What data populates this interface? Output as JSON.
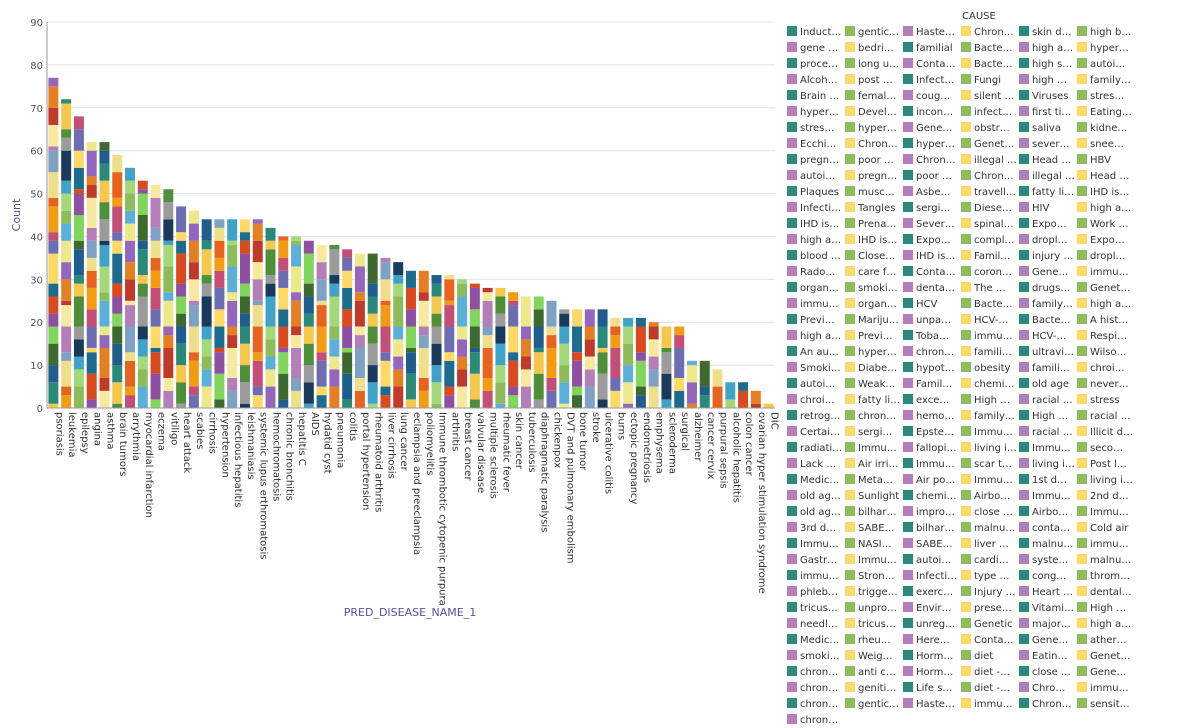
{
  "chart_data": {
    "type": "bar",
    "stacked": true,
    "xlabel": "PRED_DISEASE_NAME_1",
    "ylabel": "Count",
    "ylim": [
      0,
      90
    ],
    "yticks": [
      0,
      10,
      20,
      30,
      40,
      50,
      60,
      70,
      80,
      90
    ],
    "grid": true,
    "legend_title": "CAUSE",
    "legend_position": "right",
    "categories": [
      "psoriasis",
      "leukemia",
      "epilepsy",
      "angina",
      "asthma",
      "brain tumors",
      "arrythmia",
      "myocardial infarction",
      "eczema",
      "vitiligo",
      "heart attack",
      "scabies",
      "cirrhosis",
      "hypertension",
      "infectious hepatitis",
      "leishmaniasis",
      "systemic lupus erthromatosis",
      "hemochromatosis",
      "chronic bronchitis",
      "hepatitis C",
      "AIDS",
      "hydatid cyst",
      "pneumonia",
      "colitis",
      "portal hypertension",
      "rheumatoid arthritis",
      "liver cirrhosis",
      "lung cancer",
      "eclampsia and preeclampsia",
      "poliomyelitis",
      "Immune thrombotic cytopenic purpura",
      "arthritis",
      "breast cancer",
      "valvular disease",
      "multiple sclerosis",
      "rheumatic fever",
      "skin cancer",
      "tuberculosis",
      "diaphragmatic paralysis",
      "chickenpox",
      "DVT and pulmonary embolism",
      "bone tumor",
      "stroke",
      "ulcerative colitis",
      "burns",
      "ectopic pregnancy",
      "endometriosis",
      "emphysema",
      "scleroderma",
      "surgical",
      "alzheimer",
      "cancer cervix",
      "purpural sepsis",
      "alcoholic hepatitis",
      "colon cancer",
      "ovarian hyper stimulation syndrome",
      "DIC"
    ],
    "totals": [
      77,
      72,
      68,
      62,
      62,
      59,
      56,
      53,
      52,
      51,
      47,
      46,
      44,
      44,
      44,
      44,
      44,
      42,
      40,
      40,
      39,
      38,
      38,
      37,
      36,
      36,
      35,
      34,
      32,
      32,
      31,
      31,
      30,
      29,
      28,
      28,
      27,
      26,
      26,
      25,
      23,
      23,
      23,
      23,
      21,
      21,
      21,
      20,
      19,
      19,
      11,
      11,
      9,
      6,
      6,
      4,
      1
    ],
    "legend": [
      "Induct…",
      "gentic…",
      "Haste…",
      "Chron…",
      "skin d…",
      "high b…",
      "gene …",
      "bedri…",
      "familial",
      "Bacte…",
      "high a…",
      "hyper…",
      "proce…",
      "long u…",
      "Conta…",
      "Bacte…",
      "high s…",
      "autoi…",
      "Alcoh…",
      "post …",
      "Infect…",
      "Fungi",
      "high …",
      "family…",
      "Brain …",
      "femal…",
      "coug…",
      "silent …",
      "Viruses",
      "stres…",
      "hyper…",
      "Devel…",
      "incon…",
      "infect…",
      "first ti…",
      "Eating…",
      "stres…",
      "hyper…",
      "Gene…",
      "obstr…",
      "saliva",
      "kidne…",
      "Ecchi…",
      "Chron…",
      "hyper…",
      "Genet…",
      "sever…",
      "snee…",
      "pregn…",
      "poor …",
      "Chron…",
      "illegal …",
      "Head …",
      "HBV",
      "autoi…",
      "pregn…",
      "poor …",
      "Chron…",
      "illegal …",
      "Head …",
      "Plaques",
      "musc…",
      "Asbe…",
      "travell…",
      "fatty li…",
      "IHD is…",
      "Infecti…",
      "Tangles",
      "sergi…",
      "Diese…",
      "HIV",
      "high a…",
      "IHD is…",
      "Prena…",
      "Sever…",
      "spinal…",
      "Expo…",
      "Work …",
      "high a…",
      "IHD is…",
      "Expo…",
      "compl…",
      "dropl…",
      "Expo…",
      "blood …",
      "Close…",
      "IHD is…",
      "Famil…",
      "injury …",
      "dropl…",
      "Rado…",
      "care f…",
      "Conta…",
      "coron…",
      "Gene…",
      "immu…",
      "organ…",
      "smoki…",
      "denta…",
      "The …",
      "drugs…",
      "Genet…",
      "immu…",
      "organ…",
      "HCV",
      "Bacte…",
      "family…",
      "high a…",
      "Previ…",
      "Mariju…",
      "unpa…",
      "HCV-…",
      "Bacte…",
      "A hist…",
      "high a…",
      "Previ…",
      "Toba…",
      "immu…",
      "HCV-…",
      "Respi…",
      "An au…",
      "hyper…",
      "chron…",
      "famili…",
      "ultravi…",
      "Wilso…",
      "Smoki…",
      "Diabe…",
      "hypot…",
      "obesity",
      "famili…",
      "chroi…",
      "autoi…",
      "Weak…",
      "Famil…",
      "chemi…",
      "old age",
      "never…",
      "chroi…",
      "fatty li…",
      "exce…",
      "High …",
      "racial …",
      "stress",
      "retrog…",
      "chron…",
      "hemo…",
      "family…",
      "High …",
      "racial …",
      "Certai…",
      "sergi…",
      "Epste…",
      "Immu…",
      "racial …",
      "Illicit d…",
      "radiati…",
      "Immu…",
      "fallopi…",
      "living i…",
      "Immu…",
      "seco…",
      "Lack …",
      "Air irri…",
      "Immu…",
      "scar t…",
      "living i…",
      "Post l…",
      "Medic…",
      "Meta…",
      "Air po…",
      "Immu…",
      "1st d…",
      "living i…",
      "old ag…",
      "Sunlight",
      "chemi…",
      "Airbo…",
      "Immu…",
      "2nd d…",
      "old ag…",
      "bilhar…",
      "impro…",
      "close …",
      "Airbo…",
      "Immu…",
      "3rd d…",
      "SABE…",
      "bilhar…",
      "malnu…",
      "conta…",
      "Cold air",
      "Immu…",
      "NASI…",
      "SABE…",
      "liver …",
      "malnu…",
      "immu…",
      "Gastr…",
      "Immu…",
      "autoi…",
      "cardi…",
      "syste…",
      "malnu…",
      "immu…",
      "Stron…",
      "Infecti…",
      "type …",
      "cong…",
      "throm…",
      "phleb…",
      "trigge…",
      "exerc…",
      "Injury …",
      "Heart …",
      "dental…",
      "tricus…",
      "unpro…",
      "Envir…",
      "prese…",
      "Vitami…",
      "High …",
      "needl…",
      "tricus…",
      "unreg…",
      "Genetic",
      "major…",
      "high a…",
      "Medic…",
      "rheu…",
      "Here…",
      "Conta…",
      "Gene…",
      "ather…",
      "smoki…",
      "Weig…",
      "Horm…",
      "diet",
      "Eatin…",
      "Genet…",
      "chron…",
      "anti c…",
      "Horm…",
      "diet -…",
      "close …",
      "Gene…",
      "chron…",
      "geniti…",
      "Life s…",
      "diet -…",
      "Chro…",
      "immu…",
      "chron…",
      "gentic…",
      "Haste…",
      "immu…",
      "Chron…",
      "sensit…",
      "chron…"
    ]
  }
}
